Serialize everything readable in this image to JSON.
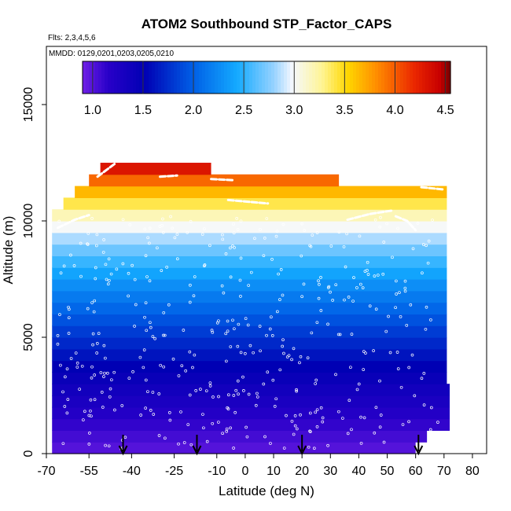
{
  "chart_data": {
    "type": "heatmap",
    "title": "ATOM2 Southbound STP_Factor_CAPS",
    "subtitle_flights": "Flts: 2,3,4,5,6",
    "subtitle_dates": "MMDD: 0129,0201,0203,0205,0210",
    "xlabel": "Latitude (deg N)",
    "ylabel": "Altitude (m)",
    "xlim": [
      -70,
      85
    ],
    "ylim": [
      0,
      17500
    ],
    "x_ticks": [
      "-70",
      "-55",
      "-40",
      "-25",
      "-10",
      "0",
      "10",
      "20",
      "30",
      "40",
      "50",
      "60",
      "70",
      "80"
    ],
    "x_tick_values": [
      -70,
      -55,
      -40,
      -25,
      -10,
      0,
      10,
      20,
      30,
      40,
      50,
      60,
      70,
      80
    ],
    "y_ticks": [
      "0",
      "5000",
      "10000",
      "15000"
    ],
    "y_tick_values": [
      0,
      5000,
      10000,
      15000
    ],
    "colorbar": {
      "min": 0.9,
      "max": 4.55,
      "tick_labels": [
        "1.0",
        "1.5",
        "2.0",
        "2.5",
        "3.0",
        "3.5",
        "4.0",
        "4.5"
      ],
      "tick_values": [
        1.0,
        1.5,
        2.0,
        2.5,
        3.0,
        3.5,
        4.0,
        4.5
      ]
    },
    "altitude_bands": [
      {
        "alt_bottom": 0,
        "alt_top": 500,
        "x_start": -68,
        "x_end": 60,
        "value": 1.0
      },
      {
        "alt_bottom": 500,
        "alt_top": 1000,
        "x_start": -68,
        "x_end": 64,
        "value": 1.06
      },
      {
        "alt_bottom": 1000,
        "alt_top": 1500,
        "x_start": -68,
        "x_end": 72,
        "value": 1.12
      },
      {
        "alt_bottom": 1500,
        "alt_top": 2000,
        "x_start": -68,
        "x_end": 72,
        "value": 1.2
      },
      {
        "alt_bottom": 2000,
        "alt_top": 2500,
        "x_start": -68,
        "x_end": 72,
        "value": 1.28
      },
      {
        "alt_bottom": 2500,
        "alt_top": 3000,
        "x_start": -68,
        "x_end": 72,
        "value": 1.36
      },
      {
        "alt_bottom": 3000,
        "alt_top": 3500,
        "x_start": -68,
        "x_end": 71,
        "value": 1.44
      },
      {
        "alt_bottom": 3500,
        "alt_top": 4000,
        "x_start": -68,
        "x_end": 71,
        "value": 1.52
      },
      {
        "alt_bottom": 4000,
        "alt_top": 4500,
        "x_start": -68,
        "x_end": 71,
        "value": 1.62
      },
      {
        "alt_bottom": 4500,
        "alt_top": 5000,
        "x_start": -68,
        "x_end": 71,
        "value": 1.72
      },
      {
        "alt_bottom": 5000,
        "alt_top": 5500,
        "x_start": -68,
        "x_end": 71,
        "value": 1.82
      },
      {
        "alt_bottom": 5500,
        "alt_top": 6000,
        "x_start": -68,
        "x_end": 71,
        "value": 1.93
      },
      {
        "alt_bottom": 6000,
        "alt_top": 6500,
        "x_start": -68,
        "x_end": 71,
        "value": 2.04
      },
      {
        "alt_bottom": 6500,
        "alt_top": 7000,
        "x_start": -68,
        "x_end": 71,
        "value": 2.15
      },
      {
        "alt_bottom": 7000,
        "alt_top": 7500,
        "x_start": -68,
        "x_end": 71,
        "value": 2.27
      },
      {
        "alt_bottom": 7500,
        "alt_top": 8000,
        "x_start": -68,
        "x_end": 71,
        "value": 2.4
      },
      {
        "alt_bottom": 8000,
        "alt_top": 8500,
        "x_start": -68,
        "x_end": 71,
        "value": 2.53
      },
      {
        "alt_bottom": 8500,
        "alt_top": 9000,
        "x_start": -68,
        "x_end": 71,
        "value": 2.68
      },
      {
        "alt_bottom": 9000,
        "alt_top": 9500,
        "x_start": -68,
        "x_end": 71,
        "value": 2.84
      },
      {
        "alt_bottom": 9500,
        "alt_top": 10000,
        "x_start": -68,
        "x_end": 71,
        "value": 3.0
      },
      {
        "alt_bottom": 10000,
        "alt_top": 10500,
        "x_start": -68,
        "x_end": 71,
        "value": 3.18
      },
      {
        "alt_bottom": 10500,
        "alt_top": 11000,
        "x_start": -64,
        "x_end": 71,
        "value": 3.4
      },
      {
        "alt_bottom": 11000,
        "alt_top": 11500,
        "x_start": -60,
        "x_end": 71,
        "value": 3.65
      },
      {
        "alt_bottom": 11500,
        "alt_top": 12000,
        "x_start": -55,
        "x_end": 33,
        "value": 3.95
      },
      {
        "alt_bottom": 12000,
        "alt_top": 12500,
        "x_start": -51,
        "x_end": -12,
        "value": 4.3
      }
    ],
    "flight_arrow_latitudes": [
      -43,
      -17,
      20,
      61
    ]
  }
}
